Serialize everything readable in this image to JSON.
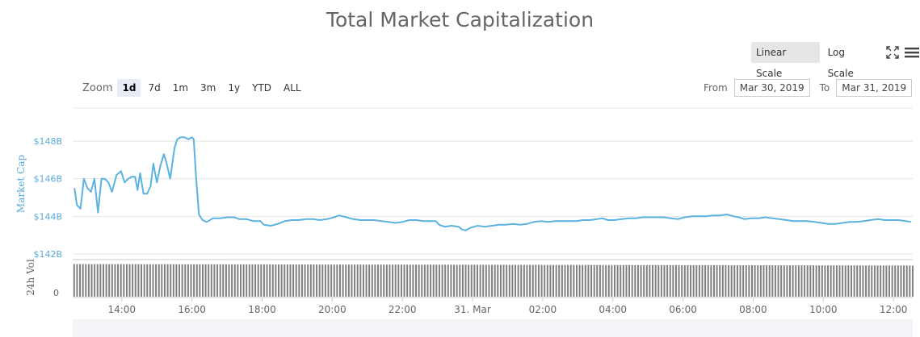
{
  "header": {
    "title": "Total Market Capitalization"
  },
  "toolbar": {
    "scale_buttons": [
      {
        "label": "Linear Scale",
        "active": true
      },
      {
        "label": "Log Scale",
        "active": false
      }
    ],
    "fullscreen_icon": "fullscreen-icon",
    "menu_icon": "hamburger-menu-icon"
  },
  "zoom": {
    "label": "Zoom",
    "buttons": [
      {
        "label": "1d",
        "active": true
      },
      {
        "label": "7d",
        "active": false
      },
      {
        "label": "1m",
        "active": false
      },
      {
        "label": "3m",
        "active": false
      },
      {
        "label": "1y",
        "active": false
      },
      {
        "label": "YTD",
        "active": false
      },
      {
        "label": "ALL",
        "active": false
      }
    ]
  },
  "range": {
    "from_label": "From",
    "from_value": "Mar 30, 2019",
    "to_label": "To",
    "to_value": "Mar 31, 2019"
  },
  "colors": {
    "line": "#5cb3e0",
    "volume_bar": "#808080",
    "axis_text": "#666666",
    "axis_label_blue": "#5aa9db",
    "grid": "#e6e6e6"
  },
  "chart_data": {
    "type": "line",
    "title": "Total Market Capitalization",
    "ylabel": "Market Cap",
    "y_unit": "USD billions",
    "ylim": [
      142,
      149
    ],
    "yticks": [
      142,
      144,
      146,
      148
    ],
    "ytick_labels": [
      "$142B",
      "$144B",
      "$146B",
      "$148B"
    ],
    "xlim": [
      12.6,
      36.55
    ],
    "x_unit": "hours since 00:00 Mar 30, 2019",
    "xticks": [
      14,
      16,
      18,
      20,
      22,
      24,
      26,
      28,
      30,
      32,
      34,
      36
    ],
    "xtick_labels": [
      "14:00",
      "16:00",
      "18:00",
      "20:00",
      "22:00",
      "31. Mar",
      "02:00",
      "04:00",
      "06:00",
      "08:00",
      "10:00",
      "12:00"
    ],
    "grid": true,
    "series": [
      {
        "points": [
          [
            12.65,
            145.5
          ],
          [
            12.72,
            144.6
          ],
          [
            12.82,
            144.4
          ],
          [
            12.92,
            146.0
          ],
          [
            13.02,
            145.5
          ],
          [
            13.12,
            145.3
          ],
          [
            13.22,
            146.0
          ],
          [
            13.32,
            144.2
          ],
          [
            13.42,
            146.0
          ],
          [
            13.52,
            146.0
          ],
          [
            13.62,
            145.8
          ],
          [
            13.72,
            145.3
          ],
          [
            13.85,
            146.2
          ],
          [
            13.98,
            146.4
          ],
          [
            14.08,
            145.8
          ],
          [
            14.18,
            146.0
          ],
          [
            14.28,
            146.1
          ],
          [
            14.38,
            146.1
          ],
          [
            14.45,
            145.4
          ],
          [
            14.52,
            146.3
          ],
          [
            14.62,
            145.2
          ],
          [
            14.72,
            145.2
          ],
          [
            14.82,
            145.6
          ],
          [
            14.9,
            146.8
          ],
          [
            15.0,
            145.8
          ],
          [
            15.1,
            146.7
          ],
          [
            15.2,
            147.3
          ],
          [
            15.28,
            146.8
          ],
          [
            15.38,
            146.0
          ],
          [
            15.5,
            147.6
          ],
          [
            15.58,
            148.1
          ],
          [
            15.68,
            148.2
          ],
          [
            15.78,
            148.2
          ],
          [
            15.9,
            148.1
          ],
          [
            16.0,
            148.2
          ],
          [
            16.05,
            148.1
          ],
          [
            16.12,
            146.0
          ],
          [
            16.2,
            144.1
          ],
          [
            16.3,
            143.8
          ],
          [
            16.42,
            143.7
          ],
          [
            16.6,
            143.9
          ],
          [
            16.8,
            143.9
          ],
          [
            17.0,
            143.95
          ],
          [
            17.2,
            143.95
          ],
          [
            17.35,
            143.85
          ],
          [
            17.55,
            143.85
          ],
          [
            17.75,
            143.75
          ],
          [
            17.95,
            143.75
          ],
          [
            18.05,
            143.55
          ],
          [
            18.25,
            143.5
          ],
          [
            18.45,
            143.6
          ],
          [
            18.65,
            143.75
          ],
          [
            18.85,
            143.8
          ],
          [
            19.05,
            143.8
          ],
          [
            19.25,
            143.85
          ],
          [
            19.45,
            143.85
          ],
          [
            19.65,
            143.8
          ],
          [
            19.85,
            143.85
          ],
          [
            20.05,
            143.95
          ],
          [
            20.2,
            144.05
          ],
          [
            20.4,
            143.95
          ],
          [
            20.6,
            143.85
          ],
          [
            20.8,
            143.8
          ],
          [
            21.0,
            143.8
          ],
          [
            21.2,
            143.8
          ],
          [
            21.4,
            143.75
          ],
          [
            21.6,
            143.7
          ],
          [
            21.8,
            143.65
          ],
          [
            22.0,
            143.7
          ],
          [
            22.2,
            143.8
          ],
          [
            22.4,
            143.8
          ],
          [
            22.6,
            143.75
          ],
          [
            22.8,
            143.75
          ],
          [
            22.95,
            143.75
          ],
          [
            23.05,
            143.55
          ],
          [
            23.2,
            143.45
          ],
          [
            23.4,
            143.5
          ],
          [
            23.6,
            143.45
          ],
          [
            23.7,
            143.3
          ],
          [
            23.8,
            143.25
          ],
          [
            23.95,
            143.4
          ],
          [
            24.15,
            143.5
          ],
          [
            24.35,
            143.45
          ],
          [
            24.55,
            143.5
          ],
          [
            24.75,
            143.55
          ],
          [
            24.95,
            143.55
          ],
          [
            25.15,
            143.6
          ],
          [
            25.35,
            143.55
          ],
          [
            25.55,
            143.6
          ],
          [
            25.75,
            143.7
          ],
          [
            25.95,
            143.75
          ],
          [
            26.15,
            143.7
          ],
          [
            26.35,
            143.75
          ],
          [
            26.55,
            143.75
          ],
          [
            26.75,
            143.75
          ],
          [
            26.95,
            143.75
          ],
          [
            27.15,
            143.8
          ],
          [
            27.35,
            143.8
          ],
          [
            27.55,
            143.85
          ],
          [
            27.7,
            143.9
          ],
          [
            27.85,
            143.8
          ],
          [
            28.05,
            143.8
          ],
          [
            28.25,
            143.85
          ],
          [
            28.45,
            143.9
          ],
          [
            28.65,
            143.9
          ],
          [
            28.85,
            143.95
          ],
          [
            29.05,
            143.95
          ],
          [
            29.25,
            143.95
          ],
          [
            29.45,
            143.95
          ],
          [
            29.65,
            143.9
          ],
          [
            29.85,
            143.85
          ],
          [
            30.05,
            143.95
          ],
          [
            30.25,
            144.0
          ],
          [
            30.45,
            144.0
          ],
          [
            30.65,
            144.0
          ],
          [
            30.85,
            144.05
          ],
          [
            31.05,
            144.05
          ],
          [
            31.25,
            144.1
          ],
          [
            31.45,
            144.0
          ],
          [
            31.6,
            143.95
          ],
          [
            31.75,
            143.85
          ],
          [
            31.95,
            143.9
          ],
          [
            32.15,
            143.9
          ],
          [
            32.35,
            143.95
          ],
          [
            32.55,
            143.9
          ],
          [
            32.75,
            143.85
          ],
          [
            32.95,
            143.8
          ],
          [
            33.15,
            143.75
          ],
          [
            33.35,
            143.75
          ],
          [
            33.55,
            143.75
          ],
          [
            33.75,
            143.7
          ],
          [
            33.95,
            143.65
          ],
          [
            34.15,
            143.6
          ],
          [
            34.35,
            143.6
          ],
          [
            34.55,
            143.65
          ],
          [
            34.75,
            143.7
          ],
          [
            34.95,
            143.7
          ],
          [
            35.15,
            143.75
          ],
          [
            35.35,
            143.8
          ],
          [
            35.55,
            143.85
          ],
          [
            35.75,
            143.8
          ],
          [
            35.95,
            143.8
          ],
          [
            36.15,
            143.8
          ],
          [
            36.35,
            143.75
          ],
          [
            36.5,
            143.7
          ]
        ]
      }
    ],
    "volume_panel": {
      "label": "24h Vol",
      "ytick_labels": [
        "0"
      ],
      "bars": {
        "x_start": 12.6,
        "x_end": 36.55,
        "interval_hours": 0.0833,
        "relative_height_start": 0.88,
        "relative_height_end": 0.84
      }
    }
  }
}
